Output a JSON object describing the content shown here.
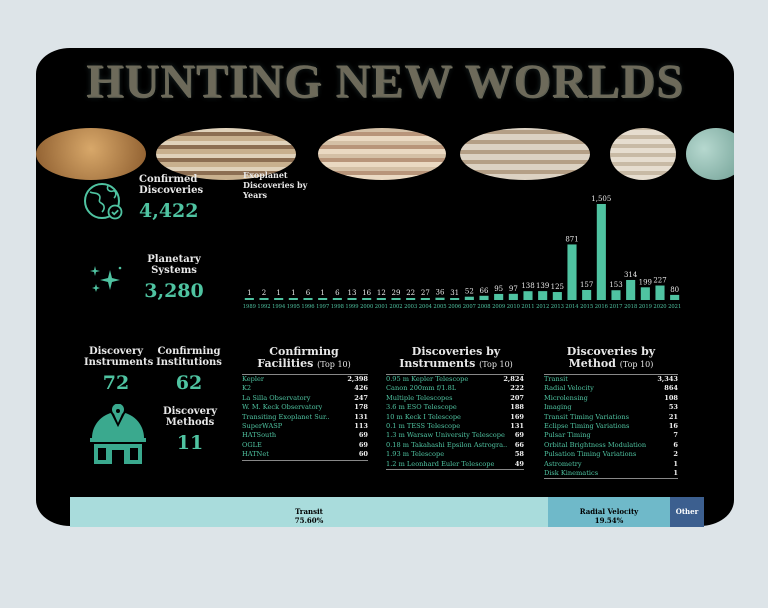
{
  "title": "HUNTING NEW WORLDS",
  "stats": {
    "confirmed_label": "Confirmed Discoveries",
    "confirmed_value": "4,422",
    "systems_label": "Planetary Systems",
    "systems_value": "3,280",
    "instruments_label": "Discovery Instruments",
    "instruments_value": "72",
    "institutions_label": "Confirming Institutions",
    "institutions_value": "62",
    "methods_label": "Discovery Methods",
    "methods_value": "11"
  },
  "icons": [
    "globe-check-icon",
    "sparkles-icon",
    "observatory-icon"
  ],
  "chart_data": {
    "type": "bar",
    "title": "Exoplanet Discoveries by Years",
    "categories": [
      "1989",
      "1992",
      "1994",
      "1995",
      "1996",
      "1997",
      "1998",
      "1999",
      "2000",
      "2001",
      "2002",
      "2003",
      "2004",
      "2005",
      "2006",
      "2007",
      "2008",
      "2009",
      "2010",
      "2011",
      "2012",
      "2013",
      "2014",
      "2015",
      "2016",
      "2017",
      "2018",
      "2019",
      "2020",
      "2021"
    ],
    "values": [
      1,
      2,
      1,
      1,
      6,
      1,
      6,
      13,
      16,
      12,
      29,
      22,
      27,
      36,
      31,
      52,
      66,
      95,
      97,
      138,
      139,
      125,
      871,
      157,
      1505,
      153,
      314,
      199,
      227,
      80
    ],
    "labels": [
      "1",
      "2",
      "1",
      "1",
      "6",
      "1",
      "6",
      "13",
      "16",
      "12",
      "29",
      "22",
      "27",
      "36",
      "31",
      "52",
      "66",
      "95",
      "97",
      "138",
      "139",
      "125",
      "871",
      "157",
      "1,505",
      "153",
      "314",
      "199",
      "227",
      "80"
    ],
    "bar_color": "#4fc3a1"
  },
  "facilities": {
    "title": "Confirming Facilities",
    "suffix": "(Top 10)",
    "rows": [
      {
        "name": "Kepler",
        "value": "2,398"
      },
      {
        "name": "K2",
        "value": "426"
      },
      {
        "name": "La Silla Observatory",
        "value": "247"
      },
      {
        "name": "W. M. Keck Observatory",
        "value": "178"
      },
      {
        "name": "Transiting Exoplanet Sur..",
        "value": "131"
      },
      {
        "name": "SuperWASP",
        "value": "113"
      },
      {
        "name": "HATSouth",
        "value": "69"
      },
      {
        "name": "OGLE",
        "value": "69"
      },
      {
        "name": "HATNet",
        "value": "60"
      }
    ]
  },
  "instruments": {
    "title": "Discoveries by Instruments",
    "suffix": "(Top 10)",
    "rows": [
      {
        "name": "0.95 m Kepler Telescope",
        "value": "2,824"
      },
      {
        "name": "Canon 200mm f/1.8L",
        "value": "222"
      },
      {
        "name": "Multiple Telescopes",
        "value": "207"
      },
      {
        "name": "3.6 m ESO Telescope",
        "value": "188"
      },
      {
        "name": "10 m Keck I Telescope",
        "value": "169"
      },
      {
        "name": "0.1 m TESS Telescope",
        "value": "131"
      },
      {
        "name": "1.3 m Warsaw University Telescope",
        "value": "69"
      },
      {
        "name": "0.18 m Takahashi Epsilon Astrogra..",
        "value": "66"
      },
      {
        "name": "1.93 m Telescope",
        "value": "58"
      },
      {
        "name": "1.2 m Leonhard Euler Telescope",
        "value": "49"
      }
    ]
  },
  "methods": {
    "title": "Discoveries by Method",
    "suffix": "(Top 10)",
    "rows": [
      {
        "name": "Transit",
        "value": "3,343"
      },
      {
        "name": "Radial Velocity",
        "value": "864"
      },
      {
        "name": "Microlensing",
        "value": "108"
      },
      {
        "name": "Imaging",
        "value": "53"
      },
      {
        "name": "Transit Timing Variations",
        "value": "21"
      },
      {
        "name": "Eclipse Timing Variations",
        "value": "16"
      },
      {
        "name": "Pulsar Timing",
        "value": "7"
      },
      {
        "name": "Orbital Brightness Modulation",
        "value": "6"
      },
      {
        "name": "Pulsation Timing Variations",
        "value": "2"
      },
      {
        "name": "Astrometry",
        "value": "1"
      },
      {
        "name": "Disk Kinematics",
        "value": "1"
      }
    ]
  },
  "treemap": [
    {
      "label": "Transit",
      "pct": "75.60%",
      "color": "#a9dcdc"
    },
    {
      "label": "Radial Velocity",
      "pct": "19.54%",
      "color": "#6fb9c9"
    },
    {
      "label": "Other",
      "pct": "",
      "color": "#3c5f8f"
    }
  ]
}
